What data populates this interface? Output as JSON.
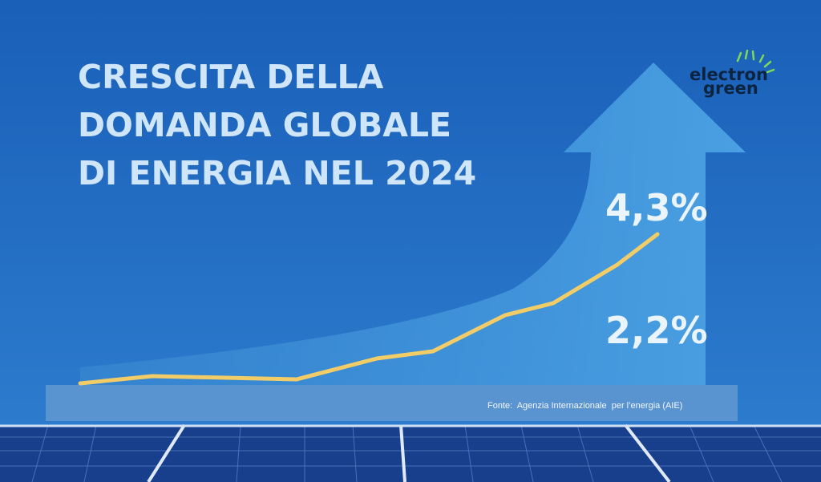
{
  "header": {
    "title_lines": [
      "CRESCITA DELLA",
      "DOMANDA GLOBALE",
      "DI ENERGIA NEL 2024"
    ]
  },
  "logo": {
    "lines": [
      "electron",
      "green"
    ]
  },
  "labels": [
    "4,3%",
    "2,2%"
  ],
  "source": "Fonte:  Agenzia Internazionale  per l’energia (AIE)"
}
